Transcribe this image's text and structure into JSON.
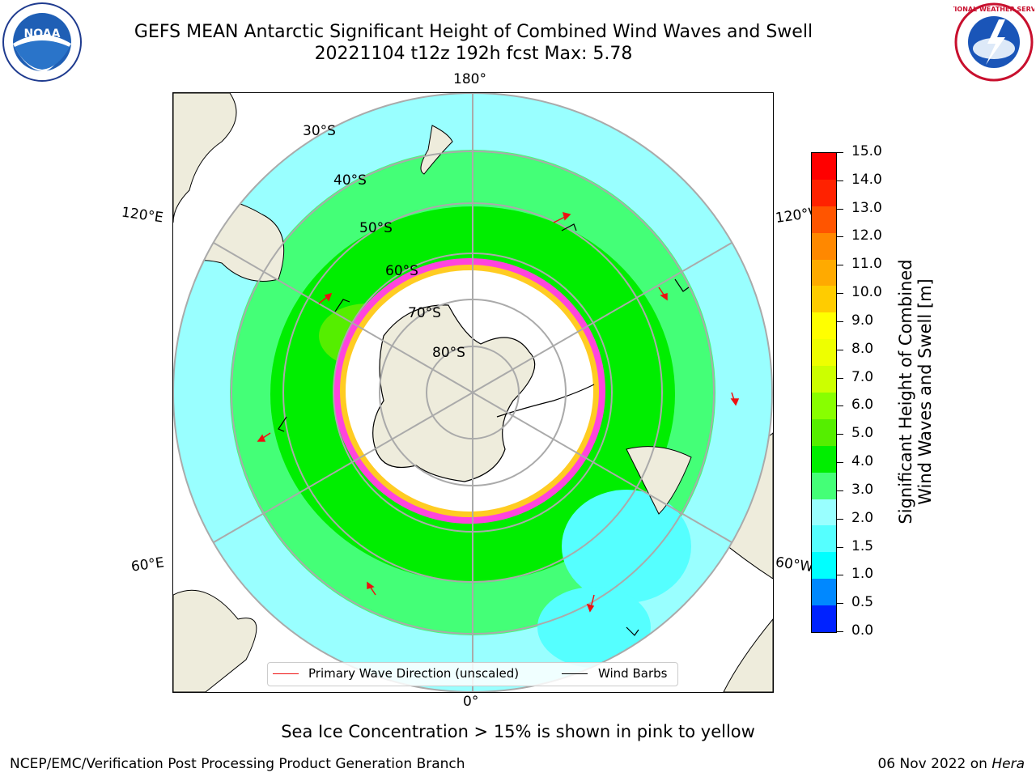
{
  "title": {
    "line1": "GEFS MEAN Antarctic Significant Height of Combined Wind Waves and Swell",
    "line2": "20221104 t12z 192h fcst   Max: 5.78"
  },
  "map": {
    "lat_labels": [
      "30°S",
      "40°S",
      "50°S",
      "60°S",
      "70°S",
      "80°S"
    ],
    "lon_labels": {
      "top": "180°",
      "bottom": "0°",
      "upper_left": "120°E",
      "lower_left": "60°E",
      "upper_right": "120°W",
      "lower_right": "60°W"
    },
    "legend": {
      "wave_direction": "Primary Wave Direction (unscaled)",
      "wind_barbs": "Wind Barbs"
    },
    "colors": {
      "land": "#eeecdc",
      "ice_pink": "#ff44dd",
      "ice_yellow": "#ffcc22",
      "arrow": "#ee1111"
    }
  },
  "colorbar": {
    "label_line1": "Significant Height of Combined",
    "label_line2": "Wind Waves and Swell [m]",
    "ticks": [
      "15.0",
      "14.0",
      "13.0",
      "12.0",
      "11.0",
      "10.0",
      "9.0",
      "8.0",
      "7.0",
      "6.0",
      "5.0",
      "4.0",
      "3.0",
      "2.0",
      "1.5",
      "1.0",
      "0.5",
      "0.0"
    ],
    "colors": [
      "#ff0000",
      "#ff2200",
      "#ff5500",
      "#ff8800",
      "#ffaa00",
      "#ffcc00",
      "#ffff00",
      "#eeff00",
      "#ccff00",
      "#88ff00",
      "#55ee00",
      "#00ee00",
      "#44ff77",
      "#99ffff",
      "#55ffff",
      "#00ffff",
      "#0088ff",
      "#0022ff"
    ]
  },
  "note": "Sea Ice Concentration > 15% is shown in pink to yellow",
  "footer": {
    "left": "NCEP/EMC/Verification Post Processing Product Generation Branch",
    "right_date": "06 Nov 2022 on ",
    "right_host": "Hera"
  },
  "logos": {
    "noaa_text": "NOAA",
    "nws_text": "NATIONAL WEATHER SERVICE"
  }
}
